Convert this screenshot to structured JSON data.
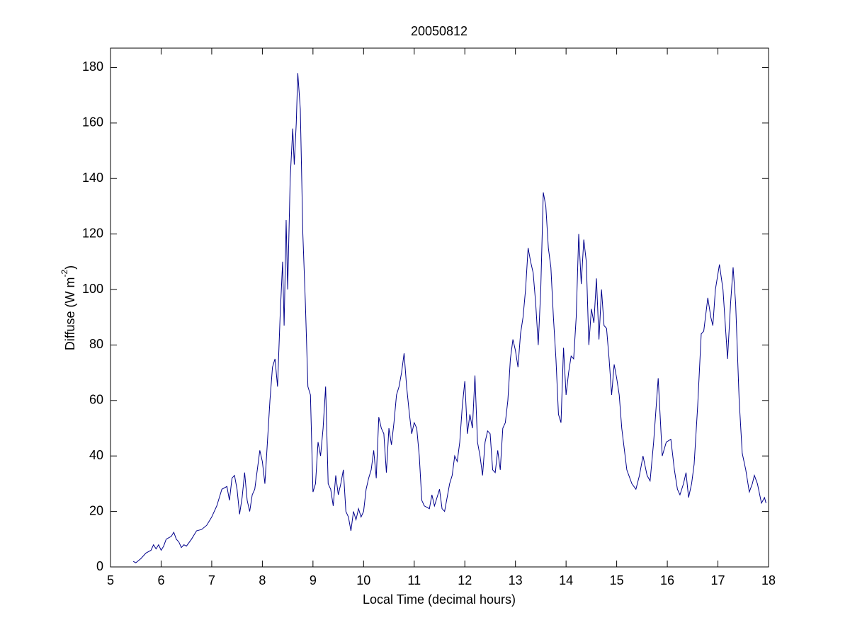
{
  "chart_data": {
    "type": "line",
    "title": "20050812",
    "xlabel": "Local Time (decimal hours)",
    "ylabel": [
      "Diffuse (W m",
      "-2",
      ")"
    ],
    "color": "#00008b",
    "xlim": [
      5,
      18
    ],
    "xticks": [
      5,
      6,
      7,
      8,
      9,
      10,
      11,
      12,
      13,
      14,
      15,
      16,
      17,
      18
    ],
    "ylim": [
      0,
      187
    ],
    "yticks": [
      0,
      20,
      40,
      60,
      80,
      100,
      120,
      140,
      160,
      180
    ],
    "x": [
      5.45,
      5.5,
      5.6,
      5.7,
      5.8,
      5.85,
      5.9,
      5.95,
      6.0,
      6.05,
      6.1,
      6.15,
      6.2,
      6.25,
      6.3,
      6.35,
      6.4,
      6.45,
      6.5,
      6.6,
      6.7,
      6.8,
      6.9,
      7.0,
      7.1,
      7.2,
      7.3,
      7.35,
      7.4,
      7.45,
      7.5,
      7.55,
      7.6,
      7.65,
      7.7,
      7.75,
      7.8,
      7.85,
      7.9,
      7.95,
      8.0,
      8.05,
      8.1,
      8.15,
      8.2,
      8.25,
      8.3,
      8.35,
      8.4,
      8.43,
      8.47,
      8.5,
      8.55,
      8.6,
      8.63,
      8.67,
      8.7,
      8.75,
      8.8,
      8.85,
      8.9,
      8.95,
      9.0,
      9.05,
      9.1,
      9.15,
      9.2,
      9.25,
      9.3,
      9.35,
      9.4,
      9.45,
      9.5,
      9.55,
      9.6,
      9.65,
      9.7,
      9.75,
      9.8,
      9.85,
      9.9,
      9.95,
      10.0,
      10.05,
      10.1,
      10.15,
      10.2,
      10.25,
      10.3,
      10.35,
      10.4,
      10.45,
      10.5,
      10.55,
      10.6,
      10.65,
      10.7,
      10.75,
      10.8,
      10.85,
      10.9,
      10.95,
      11.0,
      11.05,
      11.1,
      11.15,
      11.2,
      11.3,
      11.35,
      11.4,
      11.45,
      11.5,
      11.55,
      11.6,
      11.65,
      11.7,
      11.75,
      11.8,
      11.85,
      11.9,
      11.95,
      12.0,
      12.05,
      12.1,
      12.15,
      12.2,
      12.25,
      12.3,
      12.35,
      12.4,
      12.45,
      12.5,
      12.55,
      12.6,
      12.65,
      12.7,
      12.75,
      12.8,
      12.85,
      12.9,
      12.95,
      13.0,
      13.05,
      13.1,
      13.15,
      13.2,
      13.25,
      13.3,
      13.35,
      13.4,
      13.45,
      13.5,
      13.55,
      13.6,
      13.65,
      13.7,
      13.75,
      13.8,
      13.85,
      13.9,
      13.95,
      14.0,
      14.05,
      14.1,
      14.15,
      14.2,
      14.25,
      14.3,
      14.35,
      14.4,
      14.45,
      14.5,
      14.55,
      14.6,
      14.65,
      14.7,
      14.75,
      14.8,
      14.85,
      14.9,
      14.95,
      15.0,
      15.05,
      15.1,
      15.2,
      15.3,
      15.38,
      15.45,
      15.52,
      15.6,
      15.66,
      15.73,
      15.82,
      15.9,
      15.98,
      16.07,
      16.14,
      16.2,
      16.25,
      16.32,
      16.37,
      16.42,
      16.48,
      16.53,
      16.6,
      16.67,
      16.72,
      16.8,
      16.86,
      16.9,
      16.95,
      17.03,
      17.1,
      17.19,
      17.25,
      17.3,
      17.35,
      17.42,
      17.48,
      17.55,
      17.62,
      17.68,
      17.72,
      17.78,
      17.86,
      17.92,
      17.95
    ],
    "values": [
      2,
      1.5,
      3,
      5,
      6,
      8,
      6.5,
      8,
      6,
      7.5,
      10,
      10.5,
      11,
      12.5,
      10,
      9,
      7,
      8,
      7.5,
      10,
      13,
      13.5,
      15,
      18,
      22,
      28,
      29,
      24,
      32,
      33,
      28,
      19,
      25,
      34,
      24,
      20,
      26,
      28,
      35,
      42,
      38,
      30,
      45,
      60,
      72,
      75,
      65,
      90,
      110,
      87,
      125,
      100,
      140,
      158,
      145,
      160,
      178,
      165,
      120,
      95,
      65,
      62,
      27,
      30,
      45,
      40,
      50,
      65,
      30,
      28,
      22,
      33,
      26,
      30,
      35,
      20,
      18,
      13,
      20,
      17,
      21,
      18,
      20,
      28,
      32,
      35,
      42,
      32,
      54,
      50,
      48,
      34,
      50,
      44,
      52,
      62,
      65,
      70,
      77,
      65,
      56,
      48,
      52,
      50,
      40,
      24,
      22,
      21,
      26,
      22,
      25,
      28,
      21,
      20,
      25,
      30,
      33,
      40,
      38,
      45,
      58,
      67,
      48,
      55,
      50,
      69,
      45,
      40,
      33,
      45,
      49,
      48,
      35,
      34,
      42,
      35,
      50,
      52,
      60,
      75,
      82,
      78,
      72,
      84,
      90,
      100,
      115,
      110,
      106,
      95,
      80,
      100,
      135,
      130,
      115,
      108,
      90,
      75,
      55,
      52,
      79,
      62,
      70,
      76,
      75,
      90,
      120,
      102,
      118,
      110,
      80,
      93,
      88,
      104,
      82,
      100,
      87,
      86,
      75,
      62,
      73,
      68,
      62,
      50,
      35,
      30,
      28,
      33,
      40,
      33,
      31,
      45,
      68,
      40,
      45,
      46,
      35,
      28,
      26,
      30,
      34,
      25,
      30,
      37,
      58,
      84,
      85,
      97,
      90,
      87,
      100,
      109,
      100,
      75,
      95,
      108,
      95,
      60,
      41,
      35,
      27,
      30,
      33,
      30,
      23,
      25,
      23
    ]
  }
}
